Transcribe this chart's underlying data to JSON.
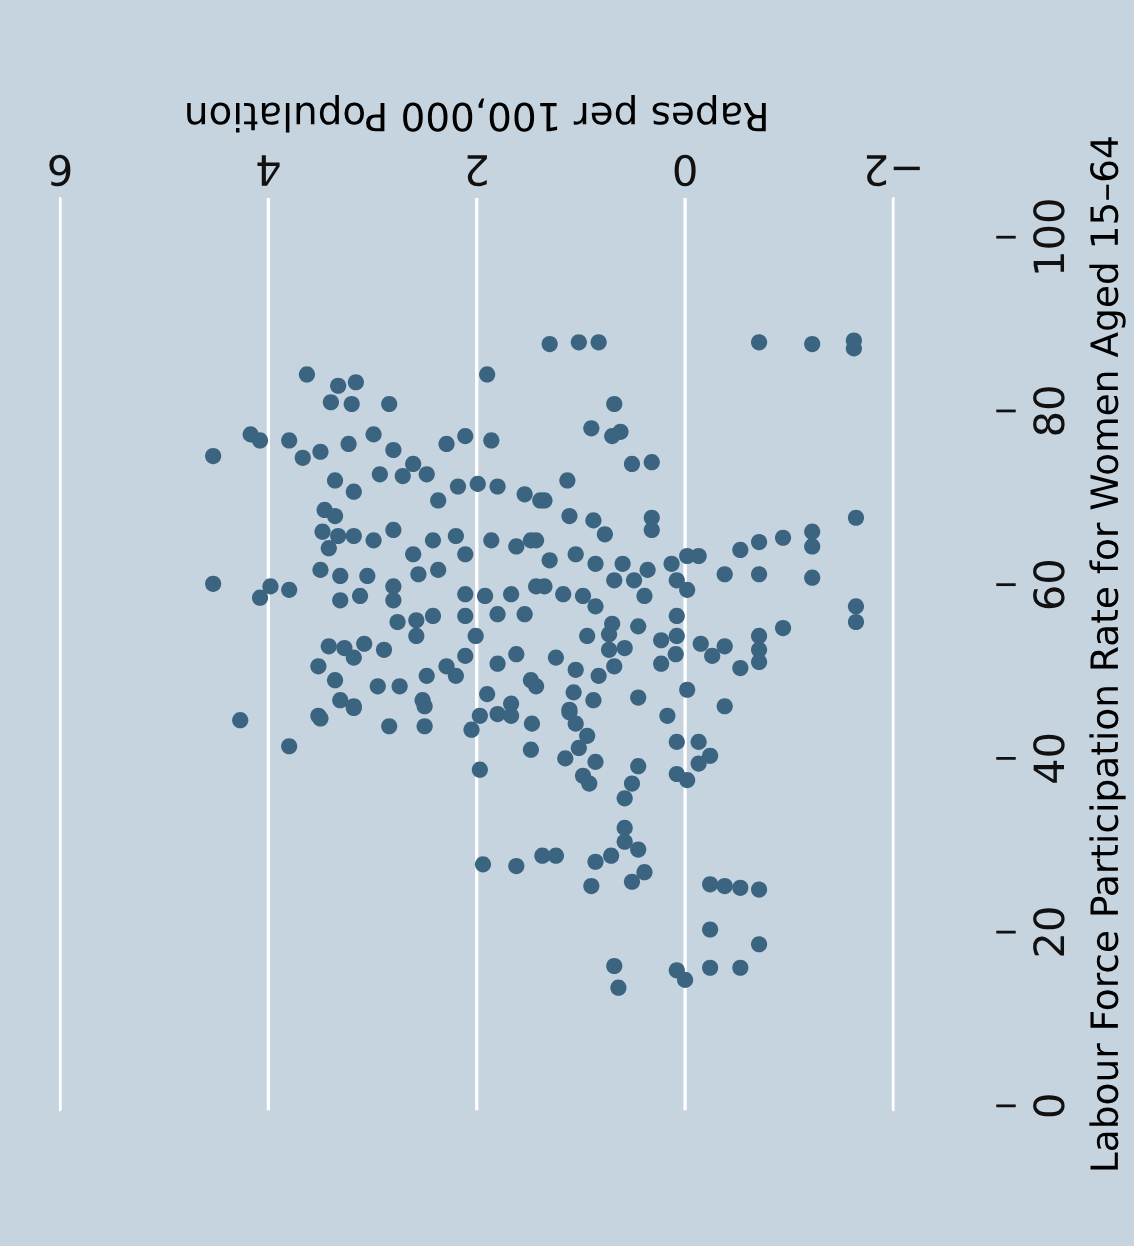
{
  "chart_data": {
    "type": "scatter",
    "xlabel": "Rapes per 100,000 Population",
    "ylabel": "Labour Force Participation Rate for Women Aged 15–64",
    "x": [
      3.63,
      3.33,
      3.16,
      3.4,
      3.2,
      2.84,
      1.9,
      4.17,
      4.08,
      4.53,
      3.8,
      3.67,
      3.5,
      3.23,
      2.99,
      2.8,
      2.61,
      2.29,
      2.11,
      1.86,
      3.36,
      3.18,
      2.93,
      2.71,
      2.48,
      2.37,
      2.18,
      1.99,
      1.8,
      1.54,
      1.39,
      3.46,
      3.36,
      3.48,
      3.33,
      3.18,
      3.42,
      2.99,
      2.8,
      2.61,
      2.42,
      2.2,
      2.11,
      1.86,
      1.62,
      1.43,
      3.5,
      3.31,
      3.05,
      2.8,
      2.56,
      2.37,
      2.11,
      1.92,
      1.67,
      1.43,
      4.53,
      4.08,
      3.98,
      3.8,
      3.31,
      3.12,
      2.8,
      2.76,
      2.58,
      2.42,
      2.11,
      1.8,
      1.54,
      3.42,
      3.27,
      3.18,
      3.08,
      2.89,
      2.58,
      2.29,
      2.11,
      2.01,
      1.8,
      1.62,
      1.48,
      3.52,
      3.36,
      3.31,
      3.18,
      2.95,
      2.74,
      2.52,
      2.48,
      2.2,
      1.9,
      1.67,
      1.43,
      4.27,
      3.52,
      1.3,
      1.02,
      0.83,
      -0.71,
      -1.22,
      -1.62,
      0.68,
      0.9,
      0.7,
      0.62,
      0.51,
      0.32,
      1.13,
      1.35,
      1.11,
      0.88,
      0.77,
      0.32,
      0.32,
      -1.64,
      -1.22,
      -1.22,
      -0.94,
      -0.71,
      -0.53,
      1.48,
      1.3,
      1.05,
      0.86,
      0.6,
      0.36,
      0.13,
      -0.02,
      -0.13,
      -0.38,
      -0.71,
      -1.22,
      1.35,
      1.17,
      0.98,
      0.86,
      0.68,
      0.49,
      0.39,
      0.08,
      -0.02,
      -1.64,
      -1.64,
      -0.94,
      0.7,
      0.45,
      0.94,
      0.73,
      0.73,
      0.58,
      0.23,
      0.08,
      0.08,
      0.09,
      -0.15,
      -0.26,
      -0.38,
      -0.53,
      -0.71,
      -0.71,
      -0.71,
      0.23,
      1.24,
      1.05,
      0.83,
      0.68,
      1.07,
      0.88,
      0.45,
      -0.02,
      -0.38,
      0.17,
      1.11,
      3.8,
      3.5,
      3.18,
      2.84,
      2.5,
      2.5,
      2.05,
      1.97,
      1.8,
      1.67,
      1.47,
      1.48,
      1.97,
      1.15,
      1.11,
      1.05,
      0.94,
      1.02,
      0.86,
      0.98,
      0.92,
      0.45,
      0.51,
      0.58,
      0.08,
      -0.13,
      -0.13,
      -0.24,
      0.08,
      -0.02,
      0.58,
      0.58,
      0.45,
      1.94,
      1.62,
      1.37,
      1.24,
      0.86,
      0.71,
      0.9,
      0.51,
      0.39,
      -0.24,
      -0.38,
      -0.53,
      -0.71,
      -0.24,
      -0.71,
      0.68,
      0.64,
      0.08,
      0.0,
      -0.24,
      -0.53,
      -1.62
    ],
    "values": [
      84.2,
      82.9,
      83.3,
      81.0,
      80.8,
      80.8,
      84.2,
      77.3,
      76.6,
      74.8,
      76.6,
      74.6,
      75.3,
      76.2,
      77.3,
      75.5,
      73.9,
      76.2,
      77.1,
      76.6,
      72.0,
      70.7,
      72.7,
      72.5,
      72.7,
      69.7,
      71.3,
      71.6,
      71.3,
      70.4,
      69.7,
      68.6,
      67.9,
      66.1,
      65.6,
      65.6,
      64.2,
      65.1,
      66.3,
      63.5,
      65.1,
      65.6,
      63.5,
      65.1,
      64.4,
      65.1,
      61.7,
      61.0,
      61.0,
      59.8,
      61.2,
      61.7,
      58.9,
      58.7,
      58.9,
      59.8,
      60.1,
      58.5,
      59.8,
      59.4,
      58.2,
      58.7,
      58.2,
      55.7,
      55.9,
      56.4,
      56.4,
      56.6,
      56.6,
      52.9,
      52.7,
      51.6,
      53.2,
      52.5,
      54.1,
      50.6,
      51.8,
      54.1,
      50.9,
      52.0,
      49.0,
      50.6,
      49.0,
      46.7,
      46.0,
      48.3,
      48.3,
      46.7,
      49.5,
      49.5,
      47.4,
      46.3,
      48.3,
      44.4,
      44.9,
      87.7,
      87.9,
      87.9,
      87.9,
      87.7,
      87.2,
      80.8,
      78.0,
      77.1,
      77.6,
      73.9,
      74.1,
      72.0,
      69.7,
      67.9,
      67.4,
      65.8,
      67.7,
      66.3,
      67.7,
      66.1,
      64.4,
      65.4,
      64.9,
      64.0,
      65.1,
      62.8,
      63.5,
      62.4,
      62.4,
      61.7,
      62.4,
      63.3,
      63.3,
      61.2,
      61.2,
      60.8,
      59.8,
      58.9,
      58.7,
      57.5,
      60.5,
      60.5,
      58.7,
      60.5,
      59.4,
      57.5,
      55.7,
      55.0,
      55.5,
      55.2,
      54.1,
      54.3,
      52.5,
      52.7,
      53.6,
      56.4,
      54.1,
      52.0,
      53.2,
      51.8,
      52.9,
      50.4,
      54.1,
      52.5,
      51.1,
      50.9,
      51.6,
      50.2,
      49.5,
      50.6,
      47.6,
      46.7,
      47.0,
      47.9,
      46.0,
      44.9,
      45.6,
      41.4,
      44.6,
      45.8,
      43.7,
      43.7,
      46.0,
      43.3,
      44.9,
      45.1,
      44.9,
      44.0,
      41.0,
      38.7,
      40.0,
      45.3,
      44.0,
      42.6,
      41.2,
      39.6,
      38.0,
      37.1,
      39.1,
      37.1,
      35.4,
      41.9,
      41.9,
      39.4,
      40.3,
      38.2,
      37.5,
      32.0,
      30.4,
      29.5,
      27.8,
      27.6,
      28.8,
      28.8,
      28.1,
      28.8,
      25.3,
      25.8,
      26.9,
      25.5,
      25.3,
      25.1,
      24.9,
      20.3,
      18.6,
      16.1,
      13.6,
      15.6,
      14.5,
      15.9,
      15.9,
      88.1
    ],
    "color": "#3b6481",
    "marker": "circle",
    "xlim": [
      6,
      -2
    ],
    "ylim": [
      -0.5,
      104.5
    ],
    "xticks": [
      6,
      4,
      2,
      0,
      {
        "value": -2,
        "label": "−2"
      }
    ],
    "yticks": [
      0,
      20,
      40,
      60,
      80,
      100
    ],
    "grid": "x"
  }
}
